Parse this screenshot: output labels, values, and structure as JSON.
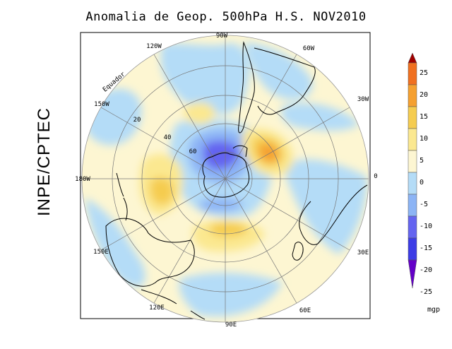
{
  "title": "Anomalia de Geop. 500hPa H.S. NOV2010",
  "side_label": "INPE/CPTEC",
  "longitude_labels": {
    "lon_90w": "90W",
    "lon_120w": "120W",
    "lon_60w": "60W",
    "lon_150w": "150W",
    "lon_30w": "30W",
    "lon_180w": "180W",
    "lon_0": "0",
    "lon_150e": "150E",
    "lon_30e": "30E",
    "lon_120e": "120E",
    "lon_60e": "60E",
    "lon_90e": "90E"
  },
  "latitude_labels": {
    "lat_20": "20",
    "lat_40": "40",
    "lat_60": "60"
  },
  "equator_label": "Equador",
  "colorbar": {
    "ticks": [
      "25",
      "20",
      "15",
      "10",
      "5",
      "0",
      "-5",
      "-10",
      "-15",
      "-20",
      "-25"
    ],
    "unit": "mgp",
    "colors": [
      "#a00000",
      "#f07020",
      "#f5a030",
      "#f5cc50",
      "#fbe890",
      "#fdf6d2",
      "#b4dcf7",
      "#8cb4f5",
      "#6464f0",
      "#3c3ce6",
      "#6400c8"
    ]
  },
  "palette": {
    "neutral": "#fdf6d2",
    "neg_weak": "#b4dcf7",
    "neg_mid": "#8cb4f5",
    "neg_strong": "#6464f0",
    "pos_weak": "#fbe890",
    "pos_mid": "#f5cc50",
    "pos_strong": "#f5a030"
  }
}
